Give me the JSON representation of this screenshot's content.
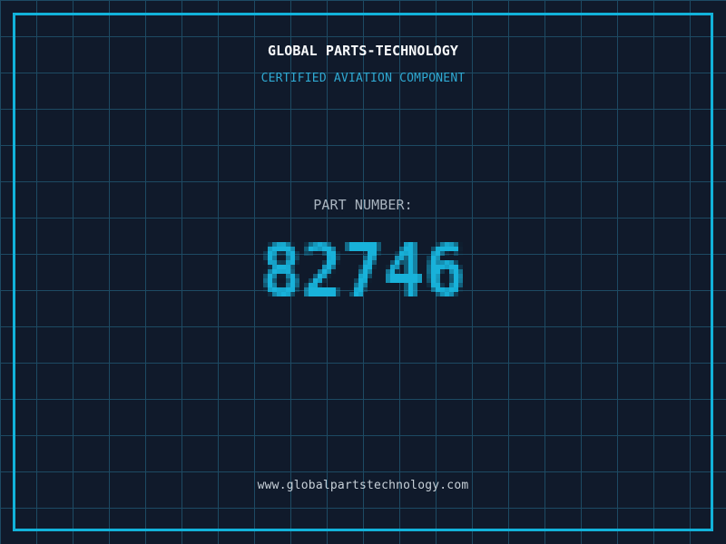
{
  "header": {
    "company_name": "GLOBAL PARTS-TECHNOLOGY",
    "tagline": "CERTIFIED AVIATION COMPONENT"
  },
  "part": {
    "label": "PART NUMBER:",
    "number": "82746"
  },
  "footer": {
    "website": "www.globalpartstechnology.com"
  },
  "colors": {
    "background": "#101a2b",
    "grid_line": "#1d4a63",
    "frame_border": "#12b2da",
    "company_text": "#f8fafc",
    "tagline_text": "#2fa9d2",
    "label_text": "#a9b4bf",
    "number_text": "#18b2da",
    "website_text": "#c7d0d8"
  }
}
